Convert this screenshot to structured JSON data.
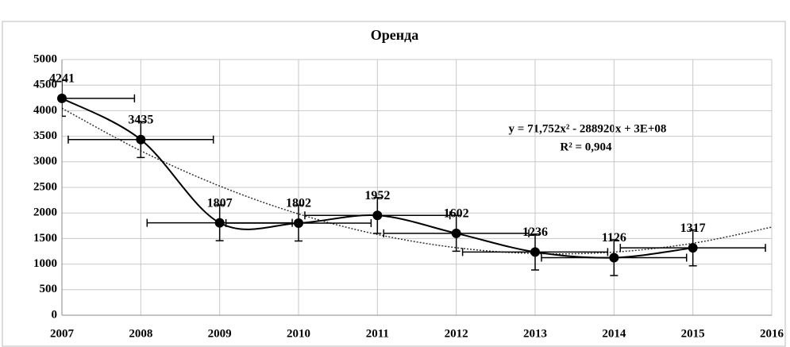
{
  "chart_data": {
    "type": "line",
    "title": "Оренда",
    "x": [
      2007,
      2008,
      2009,
      2010,
      2011,
      2012,
      2013,
      2014,
      2015
    ],
    "series": [
      {
        "color": "#000000",
        "values": [
          4241,
          3435,
          1807,
          1802,
          1952,
          1602,
          1236,
          1126,
          1317
        ],
        "yerr": [
          350,
          350,
          350,
          350,
          350,
          350,
          350,
          350,
          350
        ],
        "xerr": [
          0.92,
          0.92,
          0.92,
          0.92,
          0.92,
          0.92,
          0.92,
          0.92,
          0.92
        ]
      }
    ],
    "trendline": {
      "x": [
        2007,
        2008,
        2009,
        2010,
        2011,
        2012,
        2013,
        2014,
        2015,
        2016
      ],
      "values": [
        4048,
        3216,
        2527,
        1981,
        1580,
        1321,
        1206,
        1235,
        1407,
        1723
      ],
      "color": "#333333"
    },
    "annotations": [
      "y = 71,752x² - 288920x + 3E+08",
      "R² = 0,904"
    ],
    "xlim": [
      2007,
      2016
    ],
    "xticks": [
      2007,
      2008,
      2009,
      2010,
      2011,
      2012,
      2013,
      2014,
      2015,
      2016
    ],
    "ylim": [
      0,
      5000
    ],
    "yticks": [
      0,
      500,
      1000,
      1500,
      2000,
      2500,
      3000,
      3500,
      4000,
      4500,
      5000
    ],
    "grid": true
  }
}
